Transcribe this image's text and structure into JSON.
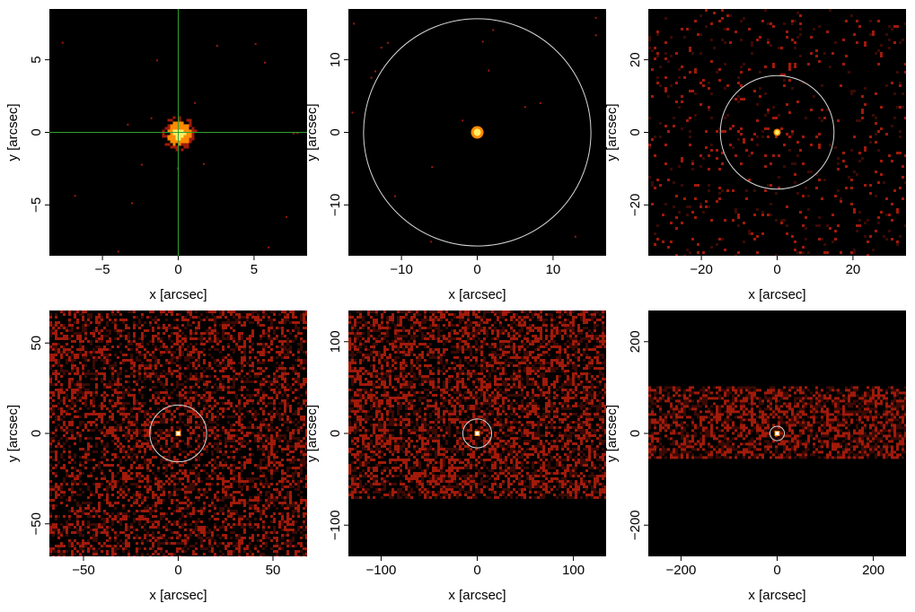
{
  "figure": {
    "colors": {
      "background": "#000000",
      "crosshair": "#2fa12f",
      "circle": "#d8d8d8",
      "hot": "#ffee66",
      "warm": "#ff8a00",
      "cool": "#a11a0a",
      "dim": "#3a0a05"
    }
  },
  "chart_data": [
    {
      "type": "heatmap",
      "xlabel": "x [arcsec]",
      "ylabel": "y [arcsec]",
      "xlim": [
        -8.5,
        8.5
      ],
      "ylim": [
        -8.5,
        8.5
      ],
      "xticks": [
        -5,
        0,
        5
      ],
      "yticks": [
        -5,
        0,
        5
      ],
      "xtick_labels": [
        "−5",
        "0",
        "5"
      ],
      "ytick_labels": [
        "−5",
        "0",
        "5"
      ],
      "source": {
        "x": 0,
        "y": 0,
        "radius": 0.9
      },
      "crosshair": {
        "x": 0,
        "y": 0
      },
      "circle": null,
      "background_band": null
    },
    {
      "type": "heatmap",
      "xlabel": "x [arcsec]",
      "ylabel": "y [arcsec]",
      "xlim": [
        -17,
        17
      ],
      "ylim": [
        -17,
        17
      ],
      "xticks": [
        -10,
        0,
        10
      ],
      "yticks": [
        -10,
        0,
        10
      ],
      "xtick_labels": [
        "−10",
        "0",
        "10"
      ],
      "ytick_labels": [
        "−10",
        "0",
        "10"
      ],
      "source": {
        "x": 0,
        "y": 0,
        "radius": 0.9
      },
      "crosshair": null,
      "circle": {
        "x": 0,
        "y": 0,
        "r": 15
      },
      "background_band": null
    },
    {
      "type": "heatmap",
      "xlabel": "x [arcsec]",
      "ylabel": "y [arcsec]",
      "xlim": [
        -34,
        34
      ],
      "ylim": [
        -34,
        34
      ],
      "xticks": [
        -20,
        0,
        20
      ],
      "yticks": [
        -20,
        0,
        20
      ],
      "xtick_labels": [
        "−20",
        "0",
        "20"
      ],
      "ytick_labels": [
        "−20",
        "0",
        "20"
      ],
      "source": {
        "x": 0,
        "y": 0,
        "radius": 0.9
      },
      "crosshair": null,
      "circle": {
        "x": 0,
        "y": 0,
        "r": 15
      },
      "background_band": {
        "ymin": -34,
        "ymax": 34,
        "density": 0.06
      }
    },
    {
      "type": "heatmap",
      "xlabel": "x [arcsec]",
      "ylabel": "y [arcsec]",
      "xlim": [
        -68,
        68
      ],
      "ylim": [
        -68,
        68
      ],
      "xticks": [
        -50,
        0,
        50
      ],
      "yticks": [
        -50,
        0,
        50
      ],
      "xtick_labels": [
        "−50",
        "0",
        "50"
      ],
      "ytick_labels": [
        "−50",
        "0",
        "50"
      ],
      "source": {
        "x": 0,
        "y": 0,
        "radius": 1.2
      },
      "crosshair": null,
      "circle": {
        "x": 0,
        "y": 0,
        "r": 15
      },
      "background_band": {
        "ymin": -68,
        "ymax": 68,
        "density": 0.45
      }
    },
    {
      "type": "heatmap",
      "xlabel": "x [arcsec]",
      "ylabel": "y [arcsec]",
      "xlim": [
        -134,
        134
      ],
      "ylim": [
        -134,
        134
      ],
      "xticks": [
        -100,
        0,
        100
      ],
      "yticks": [
        -100,
        0,
        100
      ],
      "xtick_labels": [
        "−100",
        "0",
        "100"
      ],
      "ytick_labels": [
        "−100",
        "0",
        "100"
      ],
      "source": {
        "x": 0,
        "y": 0,
        "radius": 2
      },
      "crosshair": null,
      "circle": {
        "x": 0,
        "y": 0,
        "r": 15
      },
      "background_band": {
        "ymin": -70,
        "ymax": 134,
        "density": 0.55
      }
    },
    {
      "type": "heatmap",
      "xlabel": "x [arcsec]",
      "ylabel": "y [arcsec]",
      "xlim": [
        -268,
        268
      ],
      "ylim": [
        -268,
        268
      ],
      "xticks": [
        -200,
        0,
        200
      ],
      "yticks": [
        -200,
        0,
        200
      ],
      "xtick_labels": [
        "−200",
        "0",
        "200"
      ],
      "ytick_labels": [
        "−200",
        "0",
        "200"
      ],
      "source": {
        "x": 0,
        "y": 0,
        "radius": 4
      },
      "crosshair": null,
      "circle": {
        "x": 0,
        "y": 0,
        "r": 15
      },
      "background_band": {
        "ymin": -55,
        "ymax": 103,
        "density": 0.6
      }
    }
  ]
}
